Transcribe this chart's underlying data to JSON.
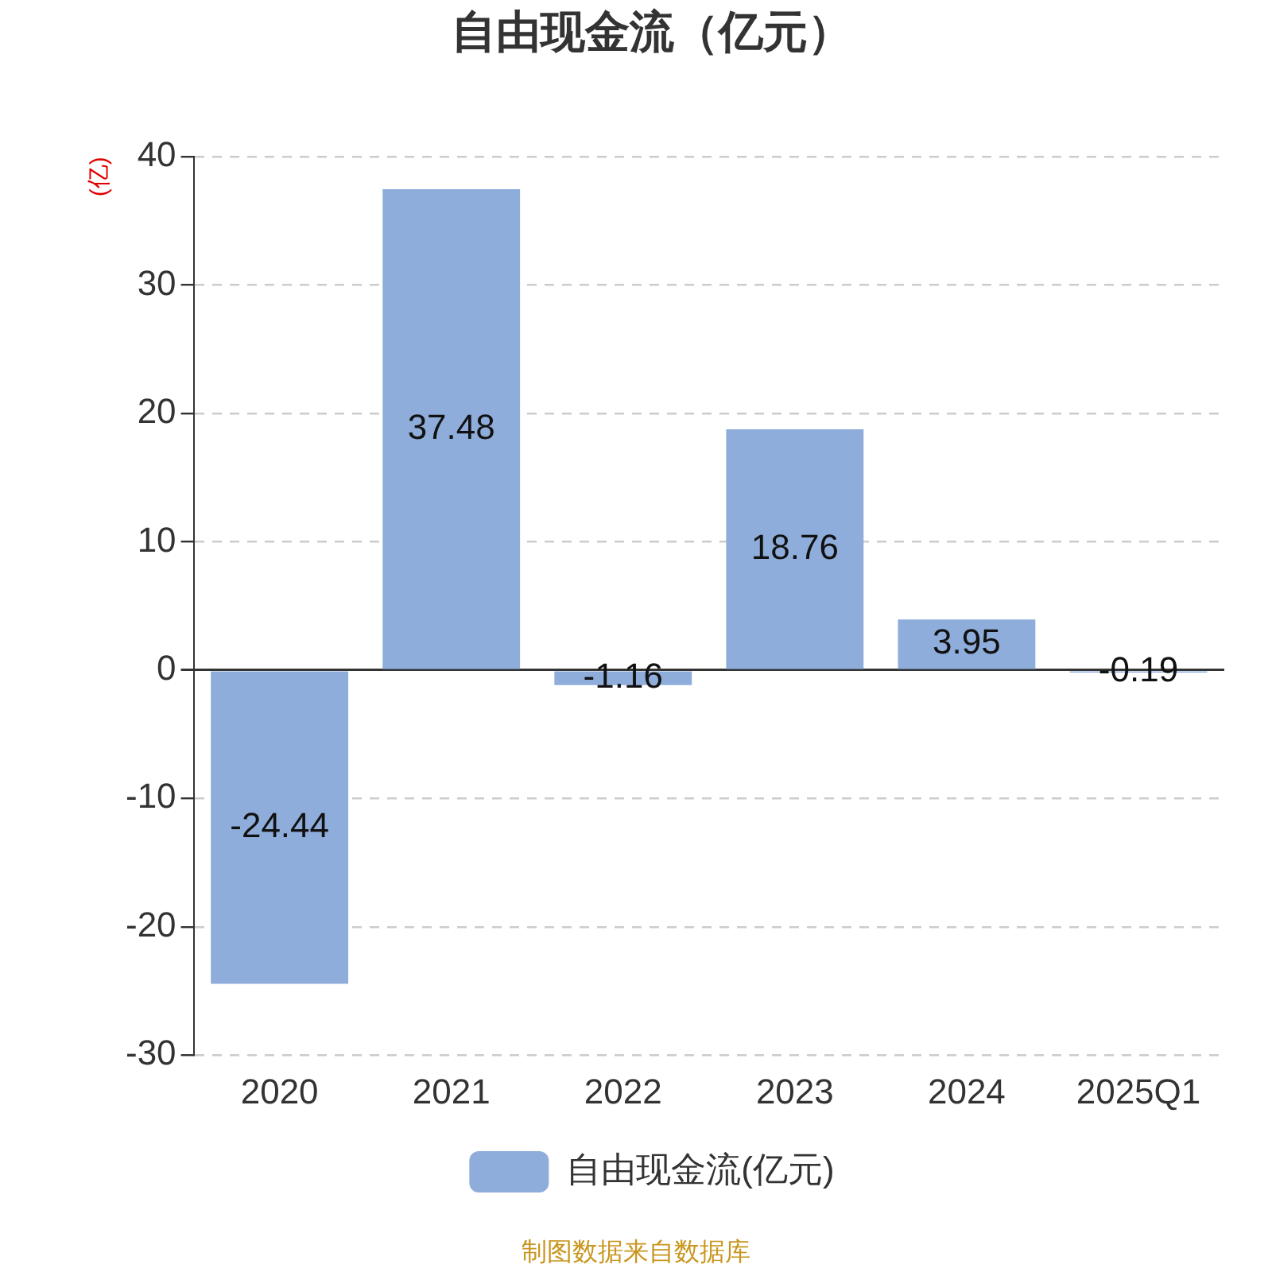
{
  "chart_data": {
    "type": "bar",
    "title": "自由现金流（亿元）",
    "ylabel": "(亿)",
    "categories": [
      "2020",
      "2021",
      "2022",
      "2023",
      "2024",
      "2025Q1"
    ],
    "series": [
      {
        "name": "自由现金流(亿元)",
        "color": "#8eaddb",
        "values": [
          -24.44,
          37.48,
          -1.16,
          18.76,
          3.95,
          -0.19
        ]
      }
    ],
    "ylim": [
      -30,
      40
    ],
    "yticks": [
      -30,
      -20,
      -10,
      0,
      10,
      20,
      30,
      40
    ],
    "grid": "y",
    "legend": "bottom",
    "data_labels": true,
    "annotations": [
      "制图数据来自数据库"
    ]
  }
}
